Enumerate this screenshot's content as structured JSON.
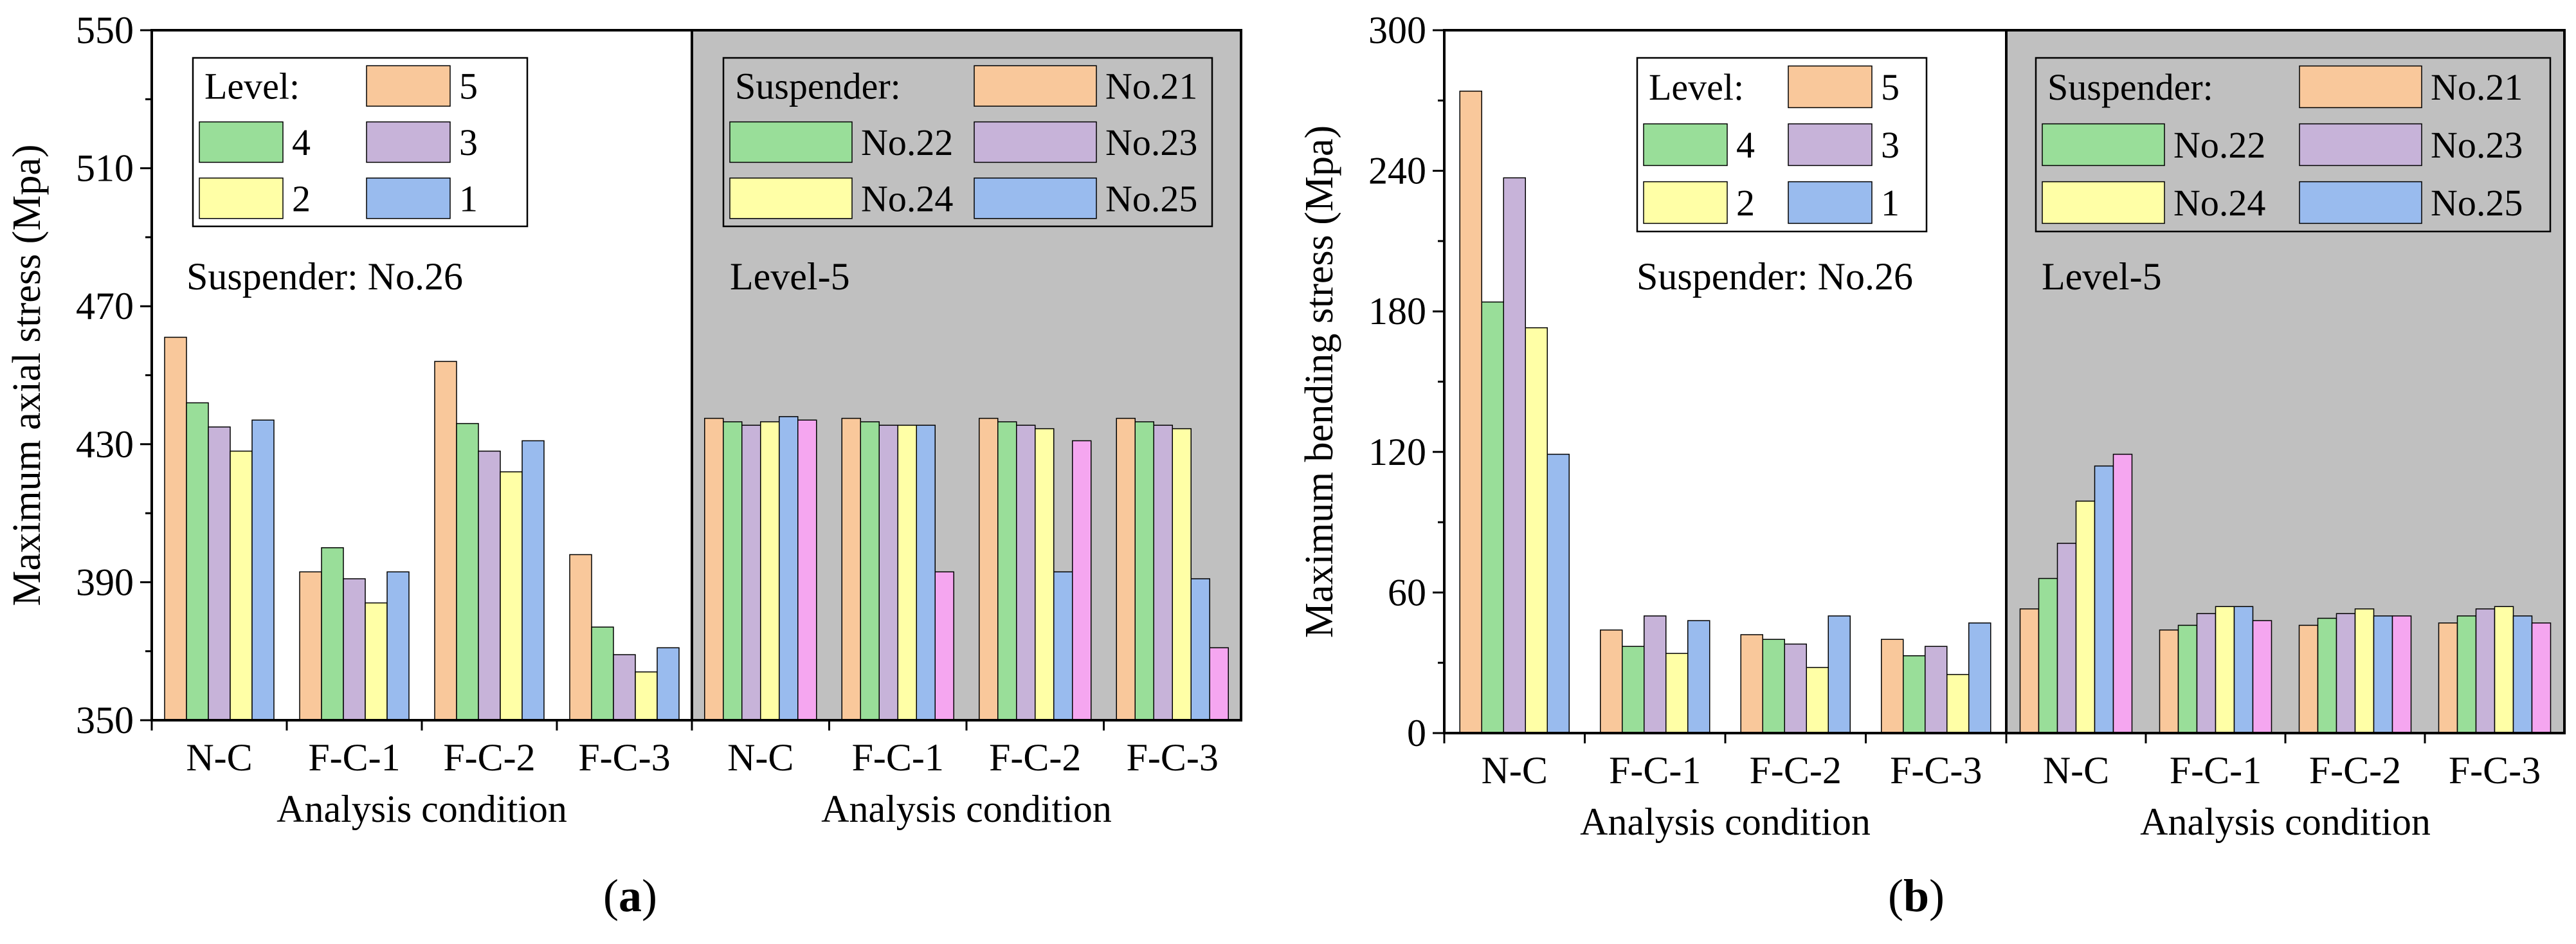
{
  "chart_data": [
    {
      "type": "bar",
      "panel_label": "a",
      "ylabel": "Maximum axial stress (Mpa)",
      "ylim": [
        350,
        550
      ],
      "yticks": [
        350,
        390,
        430,
        470,
        510,
        550
      ],
      "groups": [
        {
          "xlabel": "Analysis condition",
          "annotation": "Suspender: No.26",
          "shaded": false,
          "legend_title": "Level:",
          "legend_placement": "top-left",
          "categories": [
            "N-C",
            "F-C-1",
            "F-C-2",
            "F-C-3"
          ],
          "series": [
            {
              "name": "5",
              "color": "#F9C89B",
              "values": [
                461,
                393,
                454,
                398
              ]
            },
            {
              "name": "4",
              "color": "#99DE99",
              "values": [
                442,
                400,
                436,
                377
              ]
            },
            {
              "name": "3",
              "color": "#C7B3D9",
              "values": [
                435,
                391,
                428,
                369
              ]
            },
            {
              "name": "2",
              "color": "#FFFFA6",
              "values": [
                428,
                384,
                422,
                364
              ]
            },
            {
              "name": "1",
              "color": "#99BBEE",
              "values": [
                437,
                393,
                431,
                371
              ]
            }
          ]
        },
        {
          "xlabel": "Analysis condition",
          "annotation": "Level-5",
          "shaded": true,
          "legend_title": "Suspender:",
          "legend_placement": "top",
          "categories": [
            "N-C",
            "F-C-1",
            "F-C-2",
            "F-C-3"
          ],
          "series": [
            {
              "name": "No.21",
              "color": "#F9C89B",
              "values": [
                437.5,
                437.5,
                437.5,
                437.5
              ]
            },
            {
              "name": "No.22",
              "color": "#99DE99",
              "values": [
                436.5,
                436.5,
                436.5,
                436.5
              ]
            },
            {
              "name": "No.23",
              "color": "#C7B3D9",
              "values": [
                435.5,
                435.5,
                435.5,
                435.5
              ]
            },
            {
              "name": "No.24",
              "color": "#FFFFA6",
              "values": [
                436.5,
                435.5,
                434.5,
                434.5
              ]
            },
            {
              "name": "No.25",
              "color": "#99BBEE",
              "values": [
                438,
                435.5,
                393,
                391
              ]
            },
            {
              "name": "",
              "color": "#F5A6F0",
              "values": [
                437,
                393,
                431,
                371
              ]
            }
          ]
        }
      ]
    },
    {
      "type": "bar",
      "panel_label": "b",
      "ylabel": "Maximum bending stress (Mpa)",
      "ylim": [
        0,
        300
      ],
      "yticks": [
        0,
        60,
        120,
        180,
        240,
        300
      ],
      "groups": [
        {
          "xlabel": "Analysis condition",
          "annotation": "Suspender: No.26",
          "shaded": false,
          "legend_title": "Level:",
          "legend_placement": "top-right",
          "categories": [
            "N-C",
            "F-C-1",
            "F-C-2",
            "F-C-3"
          ],
          "series": [
            {
              "name": "5",
              "color": "#F9C89B",
              "values": [
                274,
                44,
                42,
                40
              ]
            },
            {
              "name": "4",
              "color": "#99DE99",
              "values": [
                184,
                37,
                40,
                33
              ]
            },
            {
              "name": "3",
              "color": "#C7B3D9",
              "values": [
                237,
                50,
                38,
                37
              ]
            },
            {
              "name": "2",
              "color": "#FFFFA6",
              "values": [
                173,
                34,
                28,
                25
              ]
            },
            {
              "name": "1",
              "color": "#99BBEE",
              "values": [
                119,
                48,
                50,
                47
              ]
            }
          ]
        },
        {
          "xlabel": "Analysis condition",
          "annotation": "Level-5",
          "shaded": true,
          "legend_title": "Suspender:",
          "legend_placement": "top",
          "categories": [
            "N-C",
            "F-C-1",
            "F-C-2",
            "F-C-3"
          ],
          "series": [
            {
              "name": "No.21",
              "color": "#F9C89B",
              "values": [
                53,
                44,
                46,
                47
              ]
            },
            {
              "name": "No.22",
              "color": "#99DE99",
              "values": [
                66,
                46,
                49,
                50
              ]
            },
            {
              "name": "No.23",
              "color": "#C7B3D9",
              "values": [
                81,
                51,
                51,
                53
              ]
            },
            {
              "name": "No.24",
              "color": "#FFFFA6",
              "values": [
                99,
                54,
                53,
                54
              ]
            },
            {
              "name": "No.25",
              "color": "#99BBEE",
              "values": [
                114,
                54,
                50,
                50
              ]
            },
            {
              "name": "",
              "color": "#F5A6F0",
              "values": [
                119,
                48,
                50,
                47
              ]
            }
          ]
        }
      ]
    }
  ]
}
